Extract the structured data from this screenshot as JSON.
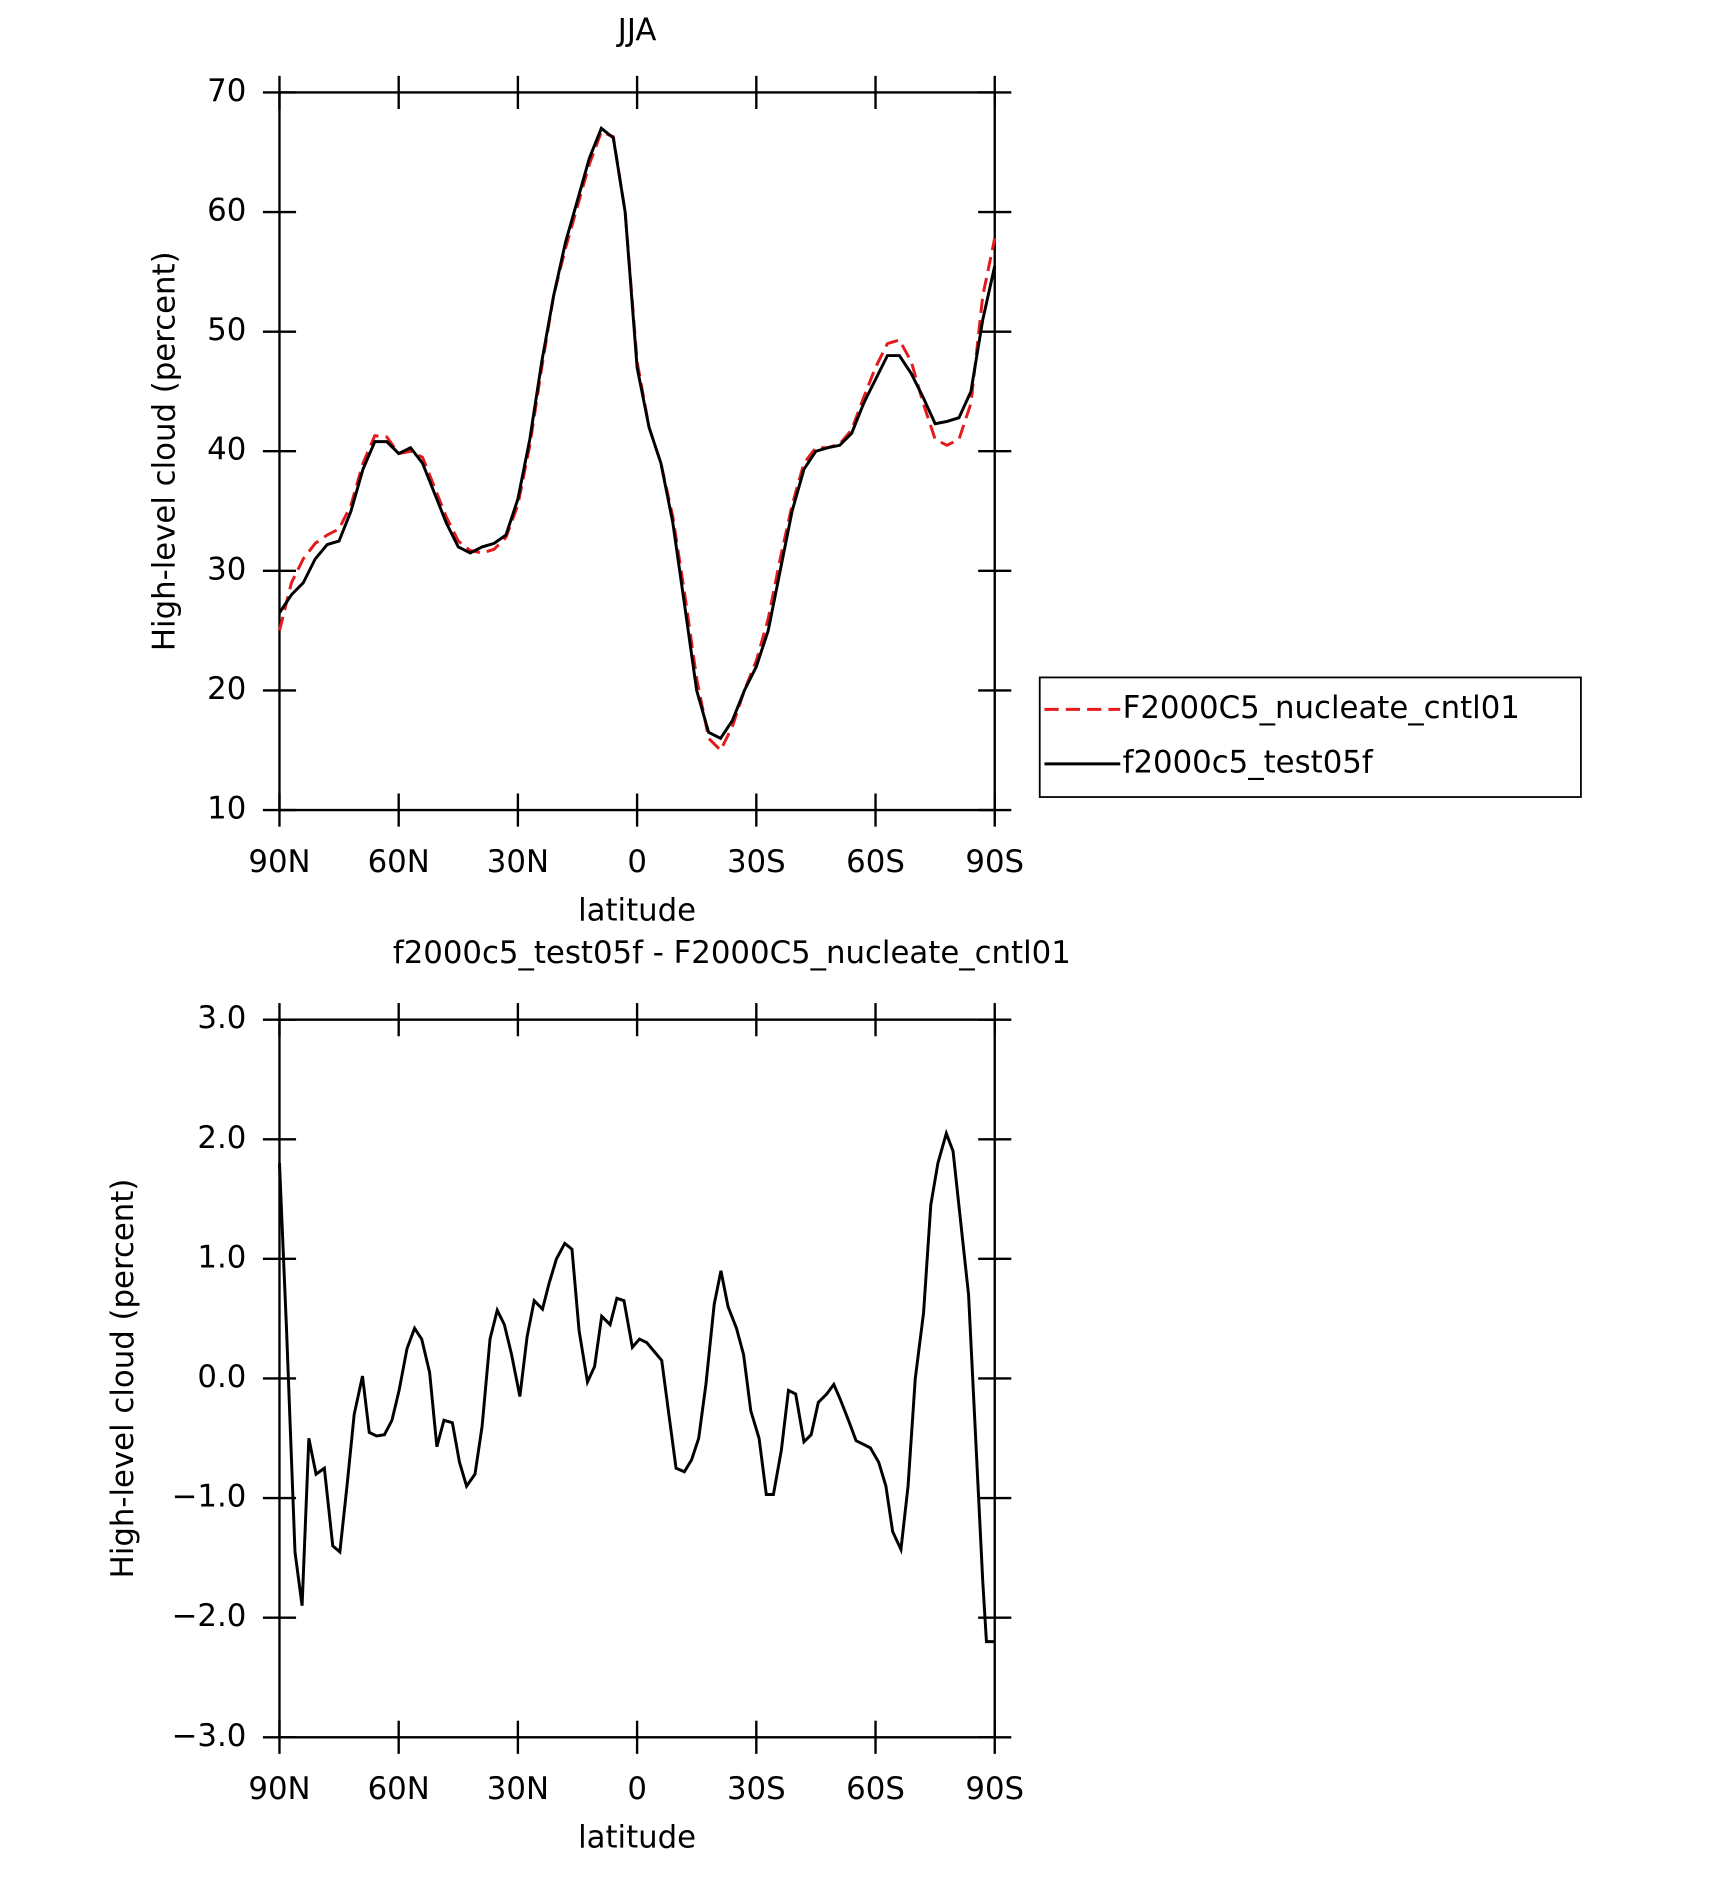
{
  "chart_data": [
    {
      "type": "line",
      "title": "JJA",
      "xlabel": "latitude",
      "ylabel": "High-level cloud (percent)",
      "xlim": [
        90,
        -90
      ],
      "xticks": [
        {
          "value": 90,
          "label": "90N"
        },
        {
          "value": 60,
          "label": "60N"
        },
        {
          "value": 30,
          "label": "30N"
        },
        0,
        {
          "value": -30,
          "label": "30S"
        },
        {
          "value": -60,
          "label": "60S"
        },
        {
          "value": -90,
          "label": "90S"
        }
      ],
      "ylim": [
        10,
        70
      ],
      "yticks": [
        10,
        20,
        30,
        40,
        50,
        60,
        70
      ],
      "legend": "right",
      "x": [
        90,
        87,
        84,
        81,
        78,
        75,
        72,
        69,
        66,
        63,
        60,
        57,
        54,
        51,
        48,
        45,
        42,
        39,
        36,
        33,
        30,
        27,
        24,
        21,
        18,
        15,
        12,
        9,
        6,
        3,
        0,
        -3,
        -6,
        -9,
        -12,
        -15,
        -18,
        -21,
        -24,
        -27,
        -30,
        -33,
        -36,
        -39,
        -42,
        -45,
        -48,
        -51,
        -54,
        -57,
        -60,
        -63,
        -66,
        -69,
        -72,
        -75,
        -78,
        -81,
        -84,
        -87,
        -90
      ],
      "series": [
        {
          "name": "F2000C5_nucleate_cntl01",
          "color": "#e41a1c",
          "style": "dashed",
          "values": [
            25,
            29,
            31,
            32.3,
            33,
            33.5,
            35.5,
            39,
            41.3,
            41.2,
            39.8,
            40,
            39.5,
            37,
            34.5,
            32.5,
            31.7,
            31.5,
            31.8,
            32.8,
            35.5,
            40.5,
            47,
            53,
            57,
            60.5,
            64,
            66.7,
            66.3,
            60,
            47.5,
            42,
            39,
            34.5,
            28,
            21,
            16,
            15,
            17,
            20,
            22.5,
            26,
            31,
            35.5,
            39,
            40.3,
            40.3,
            40.6,
            41.8,
            44.5,
            47,
            49,
            49.3,
            47.5,
            44,
            41,
            40.5,
            41,
            44,
            53,
            57.8
          ]
        },
        {
          "name": "f2000c5_test05f",
          "color": "#000000",
          "style": "solid",
          "values": [
            26.5,
            28,
            29,
            31,
            32.2,
            32.5,
            35,
            38.5,
            40.8,
            40.8,
            39.8,
            40.3,
            39,
            36.5,
            34,
            32,
            31.5,
            32,
            32.3,
            33,
            36,
            41,
            47.5,
            53,
            57.5,
            61,
            64.5,
            67,
            66.2,
            60,
            47,
            42,
            39,
            34,
            27,
            20,
            16.5,
            16,
            17.5,
            20,
            22,
            25,
            30,
            35,
            38.5,
            40,
            40.3,
            40.5,
            41.5,
            44,
            46,
            48,
            48,
            46.5,
            44.5,
            42.3,
            42.5,
            42.8,
            45,
            51,
            55.5
          ]
        }
      ]
    },
    {
      "type": "line",
      "title": "f2000c5_test05f - F2000C5_nucleate_cntl01",
      "xlabel": "latitude",
      "ylabel": "High-level cloud (percent)",
      "xlim": [
        90,
        -90
      ],
      "xticks": [
        {
          "value": 90,
          "label": "90N"
        },
        {
          "value": 60,
          "label": "60N"
        },
        {
          "value": 30,
          "label": "30N"
        },
        0,
        {
          "value": -30,
          "label": "30S"
        },
        {
          "value": -60,
          "label": "60S"
        },
        {
          "value": -90,
          "label": "90S"
        }
      ],
      "ylim": [
        -3,
        3
      ],
      "yticks": [
        {
          "value": -3,
          "label": "−3.0"
        },
        {
          "value": -2,
          "label": "−2.0"
        },
        {
          "value": -1,
          "label": "−1.0"
        },
        {
          "value": 0,
          "label": "0.0"
        },
        {
          "value": 1,
          "label": "1.0"
        },
        {
          "value": 2,
          "label": "2.0"
        },
        {
          "value": 3,
          "label": "3.0"
        }
      ],
      "x": [
        90,
        88.2,
        86.1,
        84.3,
        82.6,
        80.8,
        78.7,
        76.6,
        74.8,
        73.0,
        71.2,
        69.1,
        67.4,
        65.6,
        63.6,
        61.7,
        59.9,
        57.9,
        56.0,
        54.2,
        52.2,
        50.4,
        48.6,
        46.5,
        44.7,
        42.9,
        40.8,
        39.0,
        37.0,
        35.2,
        33.4,
        31.6,
        29.5,
        27.7,
        25.9,
        23.8,
        22.1,
        20.3,
        18.2,
        16.4,
        14.6,
        12.5,
        10.7,
        8.9,
        6.8,
        5.1,
        3.3,
        1.2,
        -0.6,
        -2.4,
        -4.2,
        -6.2,
        -8.0,
        -9.8,
        -11.9,
        -13.7,
        -15.5,
        -17.3,
        -19.4,
        -21.1,
        -22.9,
        -25.0,
        -26.8,
        -28.6,
        -30.7,
        -32.5,
        -34.3,
        -36.3,
        -38.1,
        -39.9,
        -42.0,
        -43.8,
        -45.6,
        -47.7,
        -49.5,
        -51.2,
        -53.3,
        -55.1,
        -56.9,
        -58.7,
        -60.8,
        -62.6,
        -64.3,
        -66.4,
        -68.2,
        -70.0,
        -72.1,
        -73.9,
        -75.7,
        -77.8,
        -79.5,
        -81.3,
        -83.4,
        -85.2,
        -87.0,
        -87.9,
        -90
      ],
      "series": [
        {
          "color": "#000000",
          "style": "solid",
          "values": [
            1.8,
            0.4,
            -1.45,
            -1.9,
            -0.5,
            -0.8,
            -0.75,
            -1.4,
            -1.45,
            -0.9,
            -0.3,
            0.02,
            -0.45,
            -0.48,
            -0.47,
            -0.35,
            -0.1,
            0.25,
            0.42,
            0.33,
            0.05,
            -0.57,
            -0.35,
            -0.37,
            -0.7,
            -0.9,
            -0.8,
            -0.4,
            0.33,
            0.57,
            0.45,
            0.2,
            -0.15,
            0.35,
            0.65,
            0.58,
            0.8,
            1.0,
            1.13,
            1.08,
            0.4,
            -0.03,
            0.1,
            0.52,
            0.45,
            0.67,
            0.65,
            0.26,
            0.33,
            0.3,
            0.23,
            0.15,
            -0.3,
            -0.75,
            -0.78,
            -0.68,
            -0.5,
            -0.05,
            0.62,
            0.9,
            0.6,
            0.42,
            0.2,
            -0.27,
            -0.5,
            -0.97,
            -0.97,
            -0.6,
            -0.1,
            -0.13,
            -0.53,
            -0.47,
            -0.2,
            -0.13,
            -0.05,
            -0.18,
            -0.36,
            -0.52,
            -0.55,
            -0.58,
            -0.7,
            -0.9,
            -1.28,
            -1.43,
            -0.9,
            0,
            0.55,
            1.45,
            1.8,
            2.05,
            1.9,
            1.35,
            0.7,
            -0.5,
            -1.7,
            -2.2,
            -2.2
          ]
        }
      ]
    }
  ]
}
